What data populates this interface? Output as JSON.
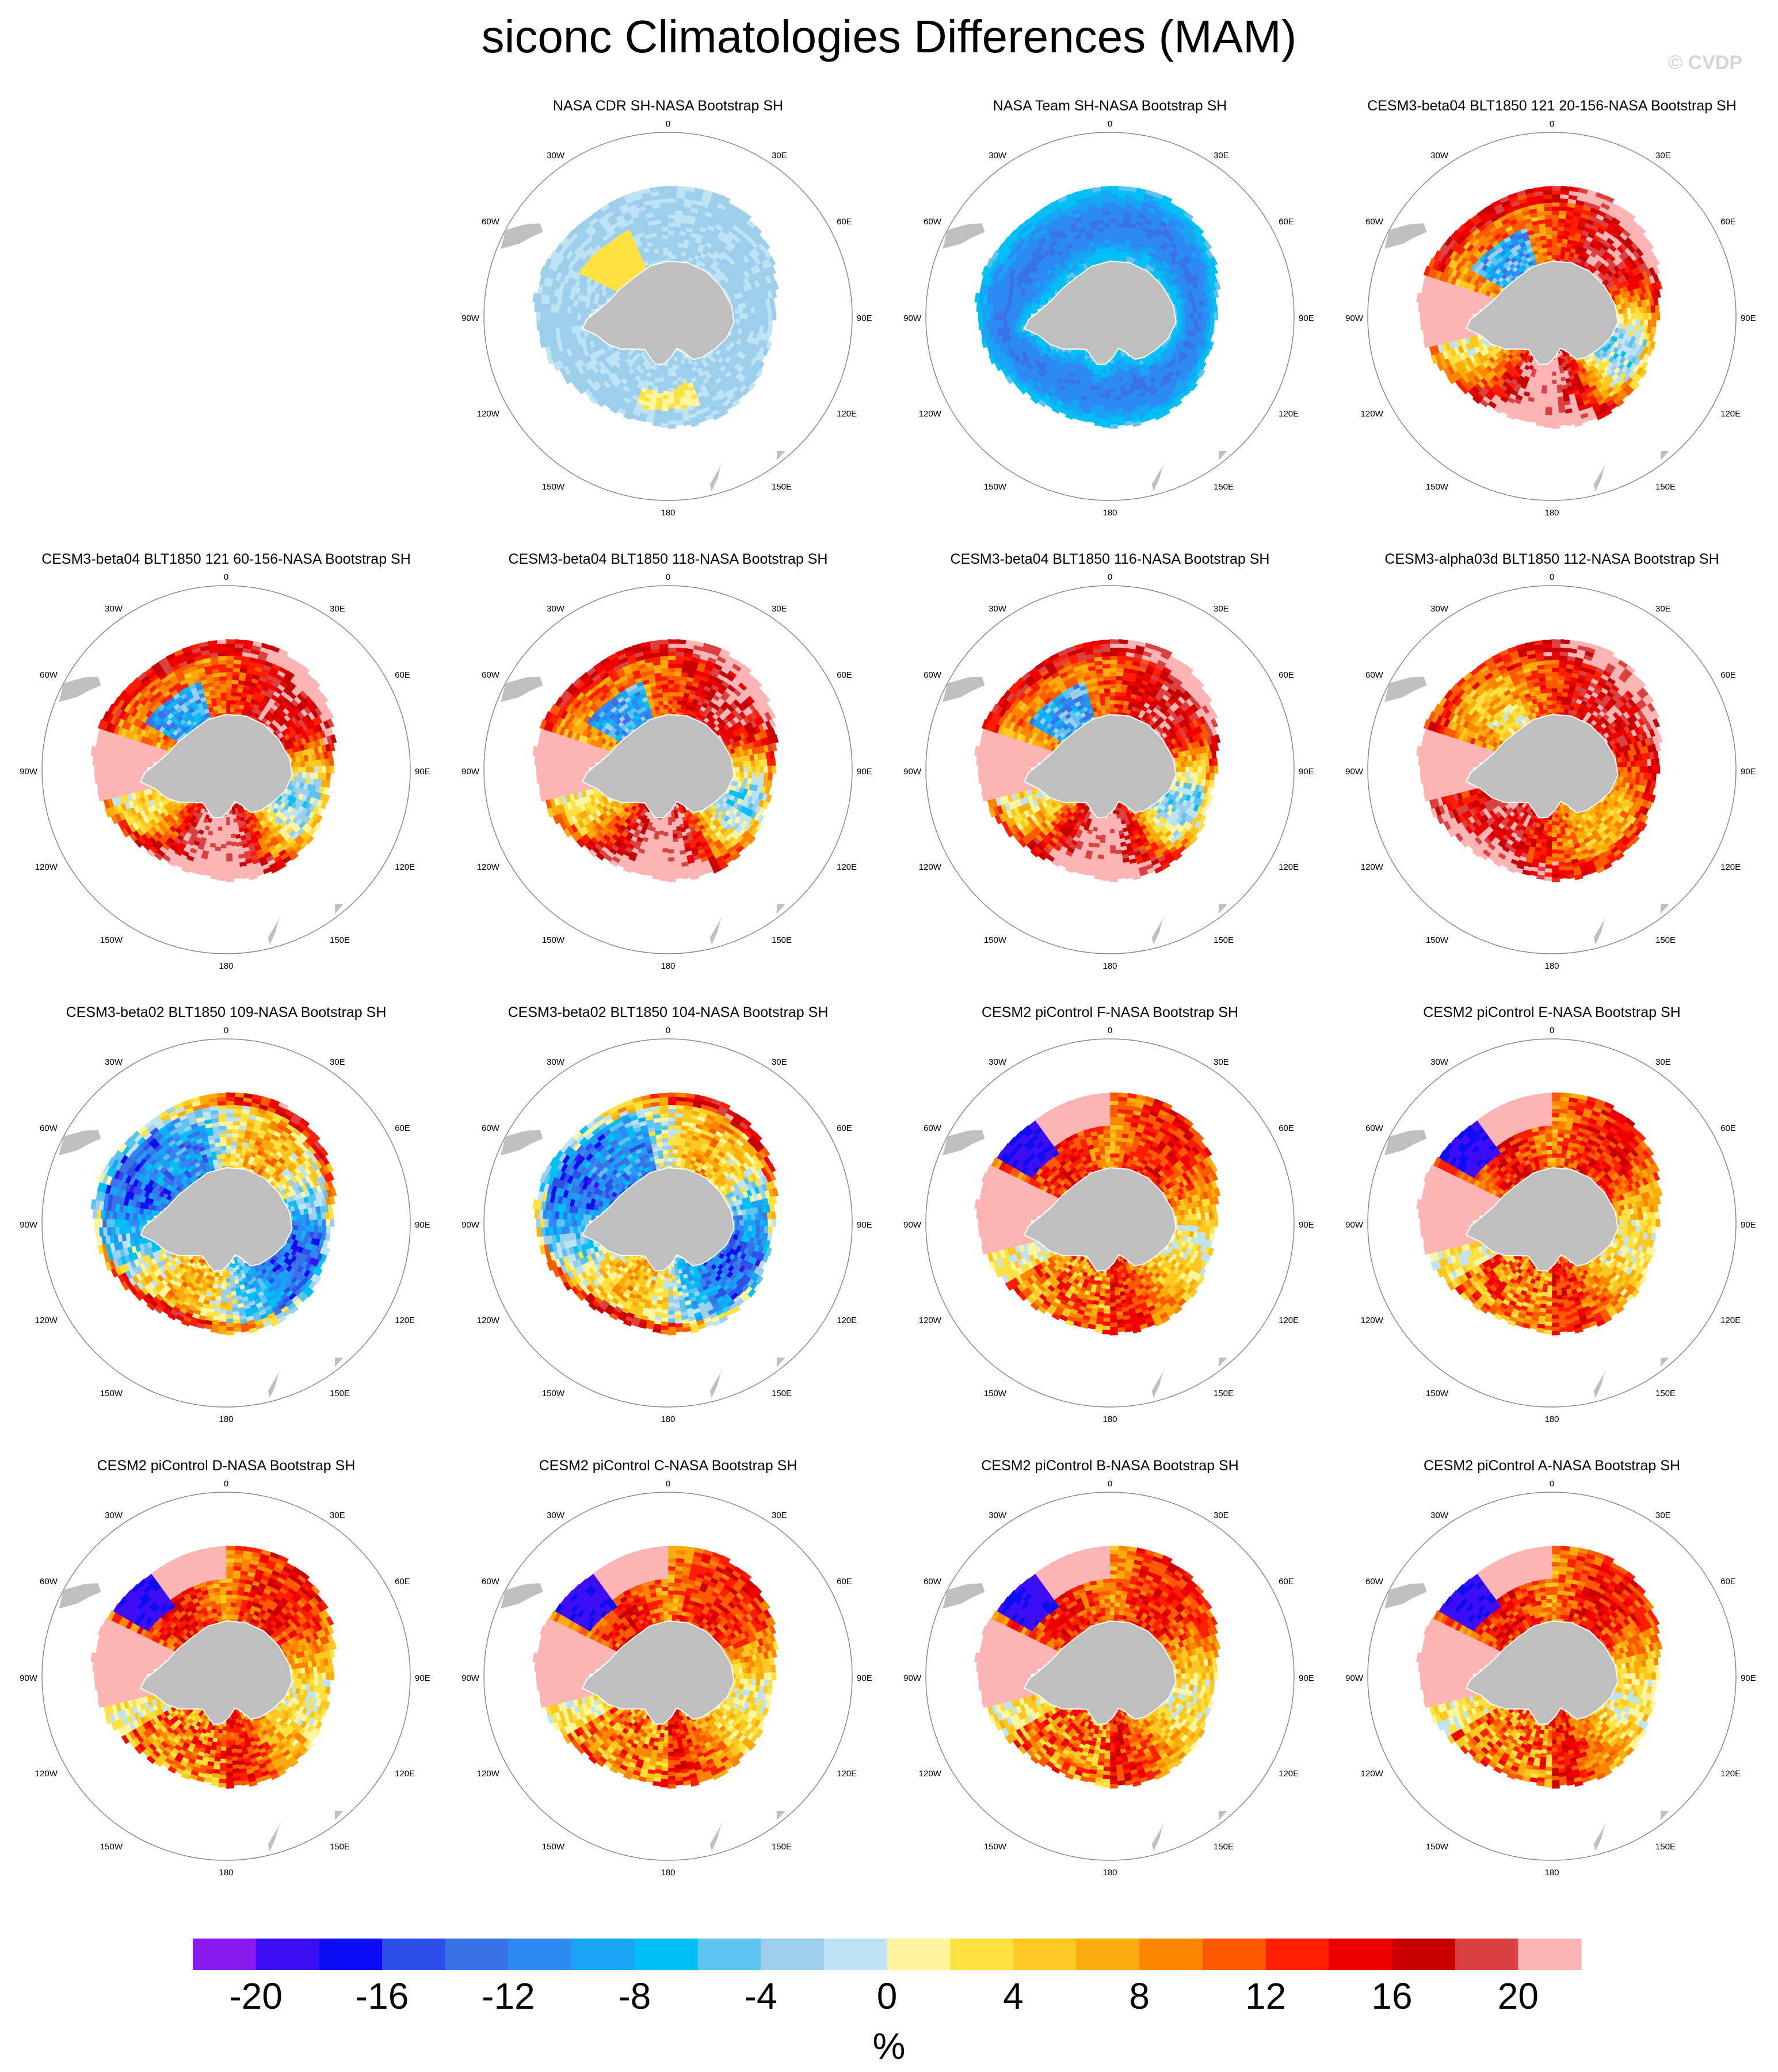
{
  "title": "siconc Climatologies Differences (MAM)",
  "credit": "© CVDP",
  "units": "%",
  "palette": [
    "#8a19f0",
    "#3d0df5",
    "#0d0df5",
    "#2e50e8",
    "#3a73e8",
    "#2d8af5",
    "#18a3f5",
    "#00bff5",
    "#5cc3f0",
    "#9dcfec",
    "#bde3f5",
    "#fff59e",
    "#ffe141",
    "#fec823",
    "#fbac0c",
    "#fd8500",
    "#fd5a00",
    "#ff1e00",
    "#ee0000",
    "#c80000",
    "#dc4141",
    "#fcb4b4"
  ],
  "levels": [
    -22,
    -20,
    -18,
    -16,
    -14,
    -12,
    -10,
    -8,
    -6,
    -4,
    -2,
    0,
    2,
    4,
    6,
    8,
    10,
    12,
    14,
    16,
    18,
    20,
    22
  ],
  "land_color": "#bfbfbf",
  "map_labels": {
    "top": "0",
    "bottom": "180",
    "left": "90W",
    "right": "90E",
    "upper_left_30": "30W",
    "upper_right_30": "30E",
    "upper_left_60": "60W",
    "upper_right_60": "60E",
    "lower_left_120": "120W",
    "lower_right_120": "120E",
    "lower_left_150": "150W",
    "lower_right_150": "150E"
  },
  "chart_data": {
    "type": "heatmap",
    "projection": "south polar stereographic",
    "field": "sea ice concentration difference",
    "colorbar_ticks": [
      "-20",
      "-16",
      "-12",
      "-8",
      "-4",
      "0",
      "4",
      "8",
      "12",
      "16",
      "20"
    ],
    "panels": [
      {
        "title": "NASA CDR SH-NASA Bootstrap SH",
        "pattern": "cdr"
      },
      {
        "title": "NASA Team SH-NASA Bootstrap SH",
        "pattern": "team"
      },
      {
        "title": "CESM3-beta04 BLT1850 121 20-156-NASA Bootstrap SH",
        "pattern": "beta04"
      },
      {
        "title": "CESM3-beta04 BLT1850 121 60-156-NASA Bootstrap SH",
        "pattern": "beta04"
      },
      {
        "title": "CESM3-beta04 BLT1850 118-NASA Bootstrap SH",
        "pattern": "beta04"
      },
      {
        "title": "CESM3-beta04 BLT1850 116-NASA Bootstrap SH",
        "pattern": "beta04"
      },
      {
        "title": "CESM3-alpha03d BLT1850 112-NASA Bootstrap SH",
        "pattern": "alpha03d"
      },
      {
        "title": "CESM3-beta02 BLT1850 109-NASA Bootstrap SH",
        "pattern": "beta02"
      },
      {
        "title": "CESM3-beta02 BLT1850 104-NASA Bootstrap SH",
        "pattern": "beta02"
      },
      {
        "title": "CESM2 piControl F-NASA Bootstrap SH",
        "pattern": "cesm2"
      },
      {
        "title": "CESM2 piControl E-NASA Bootstrap SH",
        "pattern": "cesm2"
      },
      {
        "title": "CESM2 piControl D-NASA Bootstrap SH",
        "pattern": "cesm2"
      },
      {
        "title": "CESM2 piControl C-NASA Bootstrap SH",
        "pattern": "cesm2"
      },
      {
        "title": "CESM2 piControl B-NASA Bootstrap SH",
        "pattern": "cesm2"
      },
      {
        "title": "CESM2 piControl A-NASA Bootstrap SH",
        "pattern": "cesm2"
      }
    ]
  }
}
